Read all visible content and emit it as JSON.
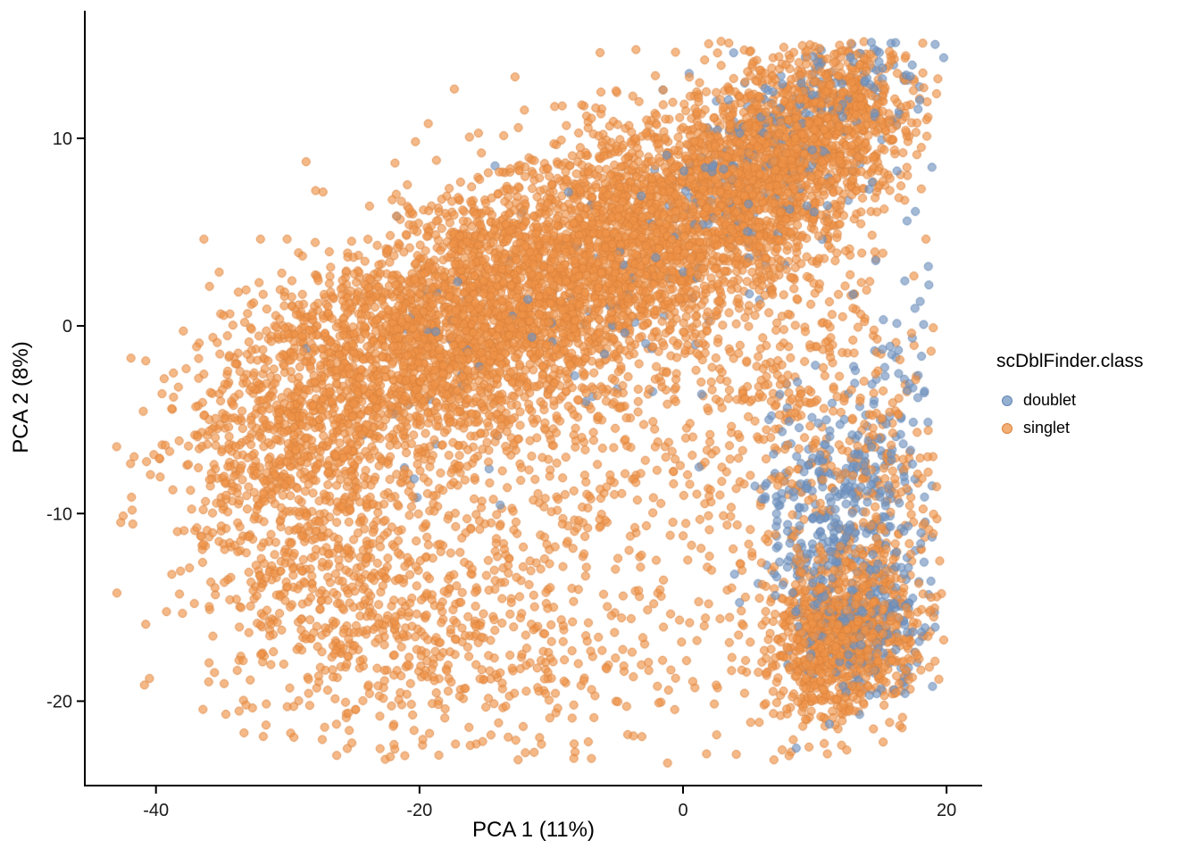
{
  "figure": {
    "background": "#FFFFFF"
  },
  "chart_data": {
    "type": "scatter",
    "title": "",
    "xlabel": "PCA 1 (11%)",
    "ylabel": "PCA 2 (8%)",
    "xlim": [
      -45.4,
      22.7
    ],
    "ylim": [
      -24.5,
      16.8
    ],
    "xticks": [
      -40,
      -20,
      0,
      20
    ],
    "yticks": [
      10,
      0,
      -10,
      -20
    ],
    "grid": false,
    "axis_color": "#000000",
    "tick_label_color": "#1A1A1A",
    "legend": {
      "title": "scDblFinder.class",
      "position": "right",
      "entries": [
        {
          "label": "doublet",
          "color": "#7294C0",
          "stroke": "#6588B4"
        },
        {
          "label": "singlet",
          "color": "#F09448",
          "stroke": "#D9813B"
        }
      ]
    },
    "point_style": {
      "radius": 4.5,
      "fill_opacity": 0.65,
      "stroke_opacity": 0.8,
      "stroke_width": 1
    },
    "seed": 20,
    "data_extent": {
      "xmin": -43.5,
      "xmax": 19.8,
      "ymin": -23.3,
      "ymax": 15.2
    },
    "series": [
      {
        "name": "singlet",
        "clusters": [
          {
            "cx": -22,
            "cy": -1.5,
            "sx": 7,
            "sy": 3.2,
            "rot": 18,
            "n": 1500
          },
          {
            "cx": -12,
            "cy": 1.5,
            "sx": 7,
            "sy": 3.5,
            "rot": 20,
            "n": 1600
          },
          {
            "cx": -2,
            "cy": 5,
            "sx": 6,
            "sy": 3.2,
            "rot": 18,
            "n": 1500
          },
          {
            "cx": 7,
            "cy": 8.5,
            "sx": 4.5,
            "sy": 3,
            "rot": 25,
            "n": 1200
          },
          {
            "cx": 12.5,
            "cy": 11.5,
            "sx": 2.5,
            "sy": 2,
            "rot": 0,
            "n": 350
          },
          {
            "cx": -30,
            "cy": -7,
            "sx": 5,
            "sy": 4,
            "rot": -10,
            "n": 450
          },
          {
            "cx": -26,
            "cy": -14,
            "sx": 6,
            "sy": 3.5,
            "rot": -5,
            "n": 420
          },
          {
            "cx": -14,
            "cy": -17,
            "sx": 9,
            "sy": 3.5,
            "rot": 0,
            "n": 430
          },
          {
            "cx": -6,
            "cy": -8,
            "sx": 8,
            "sy": 4,
            "rot": 0,
            "n": 280
          },
          {
            "cx": 8,
            "cy": -4,
            "sx": 4,
            "sy": 4,
            "rot": 0,
            "n": 280
          },
          {
            "cx": 12,
            "cy": -16.5,
            "sx": 3,
            "sy": 2.2,
            "rot": 10,
            "n": 900
          },
          {
            "cx": 15,
            "cy": -9,
            "sx": 2.5,
            "sy": 5,
            "rot": 0,
            "n": 180
          }
        ]
      },
      {
        "name": "doublet",
        "clusters": [
          {
            "cx": 11,
            "cy": -11,
            "sx": 2.8,
            "sy": 3.5,
            "rot": 0,
            "n": 320
          },
          {
            "cx": 13.5,
            "cy": -16,
            "sx": 2.5,
            "sy": 1.8,
            "rot": 0,
            "n": 200
          },
          {
            "cx": 7,
            "cy": 9,
            "sx": 4,
            "sy": 2.5,
            "rot": 20,
            "n": 170
          },
          {
            "cx": -6,
            "cy": 2.5,
            "sx": 11,
            "sy": 3.5,
            "rot": 18,
            "n": 130
          },
          {
            "cx": 16,
            "cy": -7,
            "sx": 1.8,
            "sy": 5,
            "rot": 0,
            "n": 110
          },
          {
            "cx": 13,
            "cy": 12.5,
            "sx": 2.5,
            "sy": 1.5,
            "rot": 0,
            "n": 70
          }
        ]
      }
    ]
  }
}
